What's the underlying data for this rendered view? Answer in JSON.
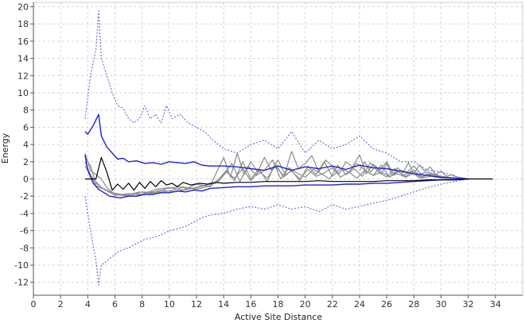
{
  "chart_data": {
    "type": "line",
    "xlabel": "Active Site Distance",
    "ylabel": "Energy",
    "xlim": [
      0,
      36
    ],
    "ylim": [
      -13.5,
      20.5
    ],
    "x_ticks": [
      0,
      2,
      4,
      6,
      8,
      10,
      12,
      14,
      16,
      18,
      20,
      22,
      24,
      26,
      28,
      30,
      32,
      34
    ],
    "y_ticks": [
      20,
      18,
      16,
      14,
      12,
      10,
      8,
      6,
      4,
      2,
      0,
      -2,
      -4,
      -6,
      -8,
      -10,
      -12
    ],
    "grid": true,
    "legend": "none",
    "colors": {
      "mean": "#000000",
      "sd_band": "#2323d2",
      "outer_band": "#7070e0",
      "samples": "#8c8c8c",
      "grid": "#d6d6d6"
    },
    "series": [
      {
        "role": "mean",
        "x": [
          3.8,
          4.2,
          4.6,
          5.0,
          5.4,
          5.8,
          6.2,
          6.6,
          7.0,
          7.4,
          7.8,
          8.2,
          8.6,
          9.0,
          9.4,
          9.8,
          10.2,
          10.6,
          11.0,
          11.6,
          12.2,
          12.8,
          13.4,
          14.0,
          15.0,
          16.0,
          17.0,
          18.0,
          19.0,
          20.0,
          21.0,
          22.0,
          23.0,
          24.0,
          25.0,
          26.0,
          27.0,
          28.0,
          29.0,
          30.0,
          31.0,
          32.0,
          33.0,
          33.8
        ],
        "y": [
          0.0,
          0.0,
          0.0,
          2.5,
          0.8,
          -1.3,
          -0.6,
          -1.2,
          -0.5,
          -1.3,
          -0.4,
          -1.1,
          -0.3,
          -0.9,
          -0.2,
          -0.7,
          -0.5,
          -0.9,
          -0.4,
          -0.7,
          -0.5,
          -0.6,
          -0.4,
          -0.5,
          -0.4,
          -0.4,
          -0.3,
          -0.3,
          -0.3,
          -0.3,
          -0.2,
          -0.3,
          -0.3,
          -0.3,
          -0.3,
          -0.2,
          -0.2,
          -0.2,
          -0.1,
          -0.1,
          -0.1,
          0.0,
          0.0,
          0.0
        ]
      },
      {
        "role": "sd_upper",
        "x": [
          3.8,
          4.0,
          4.4,
          4.8,
          5.0,
          5.4,
          5.8,
          6.2,
          6.6,
          7.0,
          7.6,
          8.2,
          8.8,
          9.4,
          10.0,
          10.6,
          11.2,
          11.8,
          12.4,
          13.0,
          14.0,
          15.0,
          16.0,
          17.0,
          18.0,
          19.0,
          20.0,
          21.0,
          22.0,
          23.0,
          24.0,
          25.0,
          26.0,
          27.0,
          28.0,
          29.0,
          30.0,
          31.0,
          32.0
        ],
        "y": [
          5.5,
          5.2,
          6.2,
          7.5,
          5.0,
          3.7,
          3.0,
          2.3,
          2.4,
          2.0,
          2.1,
          1.8,
          1.9,
          1.7,
          2.0,
          1.9,
          1.8,
          2.0,
          1.6,
          1.5,
          1.5,
          1.4,
          1.2,
          1.0,
          1.5,
          1.0,
          1.4,
          1.2,
          1.5,
          1.1,
          1.6,
          1.3,
          1.2,
          0.9,
          0.6,
          0.4,
          0.2,
          0.1,
          0.0
        ]
      },
      {
        "role": "sd_lower",
        "x": [
          3.8,
          4.0,
          4.4,
          4.8,
          5.2,
          5.6,
          6.0,
          6.4,
          7.0,
          7.6,
          8.2,
          8.8,
          9.4,
          10.0,
          10.6,
          11.2,
          11.8,
          12.4,
          13.0,
          14.0,
          15.0,
          16.0,
          17.0,
          18.0,
          19.0,
          20.0,
          21.0,
          22.0,
          23.0,
          24.0,
          25.0,
          26.0,
          27.0,
          28.0,
          29.0,
          30.0,
          31.0,
          32.0
        ],
        "y": [
          2.8,
          1.0,
          -0.5,
          -1.2,
          -1.6,
          -2.0,
          -2.1,
          -2.2,
          -2.0,
          -2.0,
          -1.8,
          -1.8,
          -1.6,
          -1.6,
          -1.4,
          -1.5,
          -1.3,
          -1.4,
          -1.1,
          -1.0,
          -0.9,
          -0.9,
          -0.8,
          -0.8,
          -0.8,
          -0.7,
          -0.7,
          -0.7,
          -0.6,
          -0.6,
          -0.5,
          -0.5,
          -0.4,
          -0.3,
          -0.2,
          -0.1,
          -0.1,
          0.0
        ]
      },
      {
        "role": "outer_upper",
        "x": [
          3.8,
          4.2,
          4.6,
          4.8,
          5.0,
          5.4,
          5.8,
          6.2,
          6.6,
          7.0,
          7.4,
          7.8,
          8.2,
          8.6,
          9.0,
          9.4,
          9.8,
          10.2,
          10.8,
          11.4,
          12.0,
          12.6,
          13.2,
          14.0,
          15.0,
          16.0,
          17.0,
          18.0,
          19.0,
          20.0,
          21.0,
          22.0,
          23.0,
          24.0,
          25.0,
          26.0,
          27.0,
          28.0,
          29.0,
          30.0,
          31.0,
          32.0
        ],
        "y": [
          7.0,
          12.0,
          15.0,
          19.5,
          14.0,
          12.0,
          10.0,
          8.5,
          8.2,
          7.0,
          6.5,
          7.0,
          8.5,
          7.0,
          7.5,
          6.5,
          8.5,
          7.0,
          7.5,
          6.5,
          6.0,
          5.5,
          4.5,
          3.5,
          3.0,
          4.0,
          4.5,
          3.5,
          5.5,
          3.0,
          4.5,
          3.5,
          4.0,
          5.0,
          3.5,
          3.0,
          2.0,
          2.0,
          1.0,
          0.8,
          0.3,
          0.0
        ]
      },
      {
        "role": "outer_lower",
        "x": [
          3.8,
          4.2,
          4.6,
          4.8,
          5.0,
          5.4,
          5.8,
          6.2,
          6.6,
          7.0,
          7.6,
          8.2,
          8.8,
          9.4,
          10.0,
          10.6,
          11.2,
          11.8,
          12.4,
          13.0,
          14.0,
          15.0,
          16.0,
          17.0,
          18.0,
          19.0,
          20.0,
          21.0,
          22.0,
          23.0,
          24.0,
          25.0,
          26.0,
          27.0,
          28.0,
          29.0,
          30.0,
          31.0,
          32.0
        ],
        "y": [
          -2.0,
          -6.0,
          -9.5,
          -12.3,
          -10.0,
          -9.5,
          -9.0,
          -8.5,
          -8.2,
          -8.0,
          -7.5,
          -7.0,
          -6.8,
          -6.5,
          -6.0,
          -5.8,
          -5.5,
          -5.0,
          -4.5,
          -4.2,
          -4.0,
          -3.5,
          -3.2,
          -3.5,
          -3.0,
          -3.5,
          -3.2,
          -3.8,
          -3.0,
          -3.5,
          -3.2,
          -2.8,
          -2.5,
          -2.0,
          -1.5,
          -1.0,
          -0.6,
          -0.3,
          0.0
        ]
      },
      {
        "role": "sample",
        "x": [
          3.8,
          4.2,
          4.6,
          5.0,
          5.4,
          6.0,
          7.0,
          8.0,
          9.0,
          10.0,
          11.0,
          12.0,
          13.0,
          14.0,
          14.5,
          15.0,
          15.5,
          16.0,
          16.5,
          17.0,
          17.5,
          18.0,
          18.5,
          19.0,
          19.5,
          20.0,
          20.5,
          21.0,
          21.5,
          22.0,
          22.5,
          23.0,
          23.5,
          24.0,
          24.5,
          25.0,
          25.5,
          26.0,
          26.5,
          27.0,
          27.5,
          28.0,
          28.5,
          29.0,
          30.0,
          31.0,
          32.0
        ],
        "y": [
          3.0,
          1.0,
          0.5,
          0.0,
          -1.0,
          -1.8,
          -2.0,
          -1.5,
          -1.6,
          -1.4,
          -1.0,
          -1.2,
          -0.8,
          2.5,
          0.2,
          3.0,
          0.5,
          2.0,
          0.8,
          2.5,
          1.0,
          2.2,
          0.6,
          3.2,
          1.2,
          1.8,
          2.7,
          0.8,
          2.2,
          1.5,
          0.6,
          2.0,
          1.4,
          2.8,
          0.6,
          1.7,
          1.0,
          2.0,
          0.5,
          1.0,
          0.8,
          1.5,
          0.6,
          0.8,
          0.3,
          0.1,
          0.0
        ]
      },
      {
        "role": "sample",
        "x": [
          3.8,
          4.2,
          4.6,
          5.0,
          5.6,
          6.4,
          7.4,
          8.4,
          9.4,
          10.4,
          11.4,
          12.4,
          13.4,
          14.2,
          14.8,
          15.4,
          16.0,
          16.6,
          17.2,
          17.8,
          18.4,
          19.0,
          19.6,
          20.2,
          20.8,
          21.4,
          22.0,
          22.6,
          23.2,
          23.8,
          24.4,
          25.0,
          25.6,
          26.2,
          26.8,
          27.4,
          28.0,
          28.6,
          29.2,
          30.0,
          31.0,
          32.0
        ],
        "y": [
          2.5,
          1.5,
          -0.5,
          -1.0,
          -1.5,
          -1.8,
          -2.0,
          -1.6,
          -1.3,
          -1.5,
          -1.2,
          -0.8,
          -0.5,
          1.0,
          -0.2,
          2.0,
          0.0,
          1.2,
          -0.3,
          1.8,
          0.2,
          1.0,
          -0.2,
          1.5,
          0.5,
          2.0,
          0.3,
          1.2,
          0.8,
          1.8,
          1.0,
          0.4,
          1.6,
          0.2,
          0.9,
          0.3,
          1.0,
          0.2,
          0.6,
          0.2,
          0.1,
          0.0
        ]
      },
      {
        "role": "sample",
        "x": [
          3.8,
          4.2,
          4.6,
          5.2,
          6.0,
          7.0,
          8.0,
          9.0,
          10.0,
          11.0,
          12.0,
          13.0,
          14.0,
          14.6,
          15.2,
          15.8,
          16.4,
          17.0,
          17.6,
          18.2,
          18.8,
          19.4,
          20.0,
          20.6,
          21.2,
          21.8,
          22.4,
          23.0,
          23.6,
          24.2,
          24.8,
          25.4,
          26.0,
          26.6,
          27.2,
          27.8,
          28.4,
          29.0,
          29.6,
          30.4,
          31.2,
          32.0
        ],
        "y": [
          2.0,
          0.5,
          -0.8,
          -1.2,
          -1.9,
          -1.7,
          -1.8,
          -1.2,
          -1.0,
          -1.3,
          -0.6,
          -0.9,
          0.5,
          1.8,
          -0.3,
          1.5,
          0.4,
          1.0,
          2.2,
          0.0,
          1.3,
          0.7,
          0.2,
          1.1,
          0.6,
          0.0,
          1.6,
          0.5,
          1.2,
          0.3,
          1.9,
          0.8,
          0.2,
          1.2,
          0.4,
          0.9,
          0.1,
          0.6,
          0.2,
          0.1,
          0.0,
          0.0
        ]
      },
      {
        "role": "sample",
        "x": [
          3.8,
          4.4,
          5.0,
          5.8,
          6.8,
          7.8,
          8.8,
          9.8,
          10.8,
          11.8,
          12.8,
          13.6,
          14.2,
          14.8,
          15.4,
          16.0,
          16.6,
          17.2,
          17.8,
          18.4,
          19.0,
          19.6,
          20.2,
          20.8,
          21.4,
          22.0,
          22.6,
          23.2,
          23.8,
          24.4,
          25.0,
          25.6,
          26.2,
          26.8,
          27.4,
          28.0,
          28.6,
          29.2,
          30.0,
          31.0,
          32.0
        ],
        "y": [
          1.5,
          0.0,
          -1.0,
          -1.6,
          -1.9,
          -1.5,
          -1.7,
          -1.1,
          -0.9,
          -1.1,
          -0.7,
          -0.3,
          0.8,
          0.1,
          1.2,
          -0.2,
          0.9,
          0.1,
          1.5,
          0.4,
          0.9,
          0.0,
          1.1,
          0.3,
          0.7,
          1.3,
          0.2,
          0.8,
          0.1,
          1.0,
          0.4,
          0.8,
          0.3,
          0.6,
          0.2,
          0.7,
          0.1,
          0.3,
          0.1,
          0.0,
          0.0
        ]
      },
      {
        "role": "sample",
        "x": [
          24.0,
          24.4,
          24.8,
          25.2,
          25.6,
          26.0,
          26.4,
          26.8,
          27.2,
          27.6,
          28.0,
          28.4,
          28.8,
          29.2,
          29.6,
          30.0,
          30.4,
          30.8,
          31.2,
          31.6,
          32.0
        ],
        "y": [
          1.0,
          2.0,
          0.8,
          1.5,
          0.6,
          1.8,
          0.4,
          1.3,
          0.7,
          1.9,
          0.6,
          1.6,
          0.9,
          1.4,
          0.5,
          0.9,
          0.3,
          0.5,
          0.2,
          0.1,
          0.0
        ]
      }
    ]
  }
}
